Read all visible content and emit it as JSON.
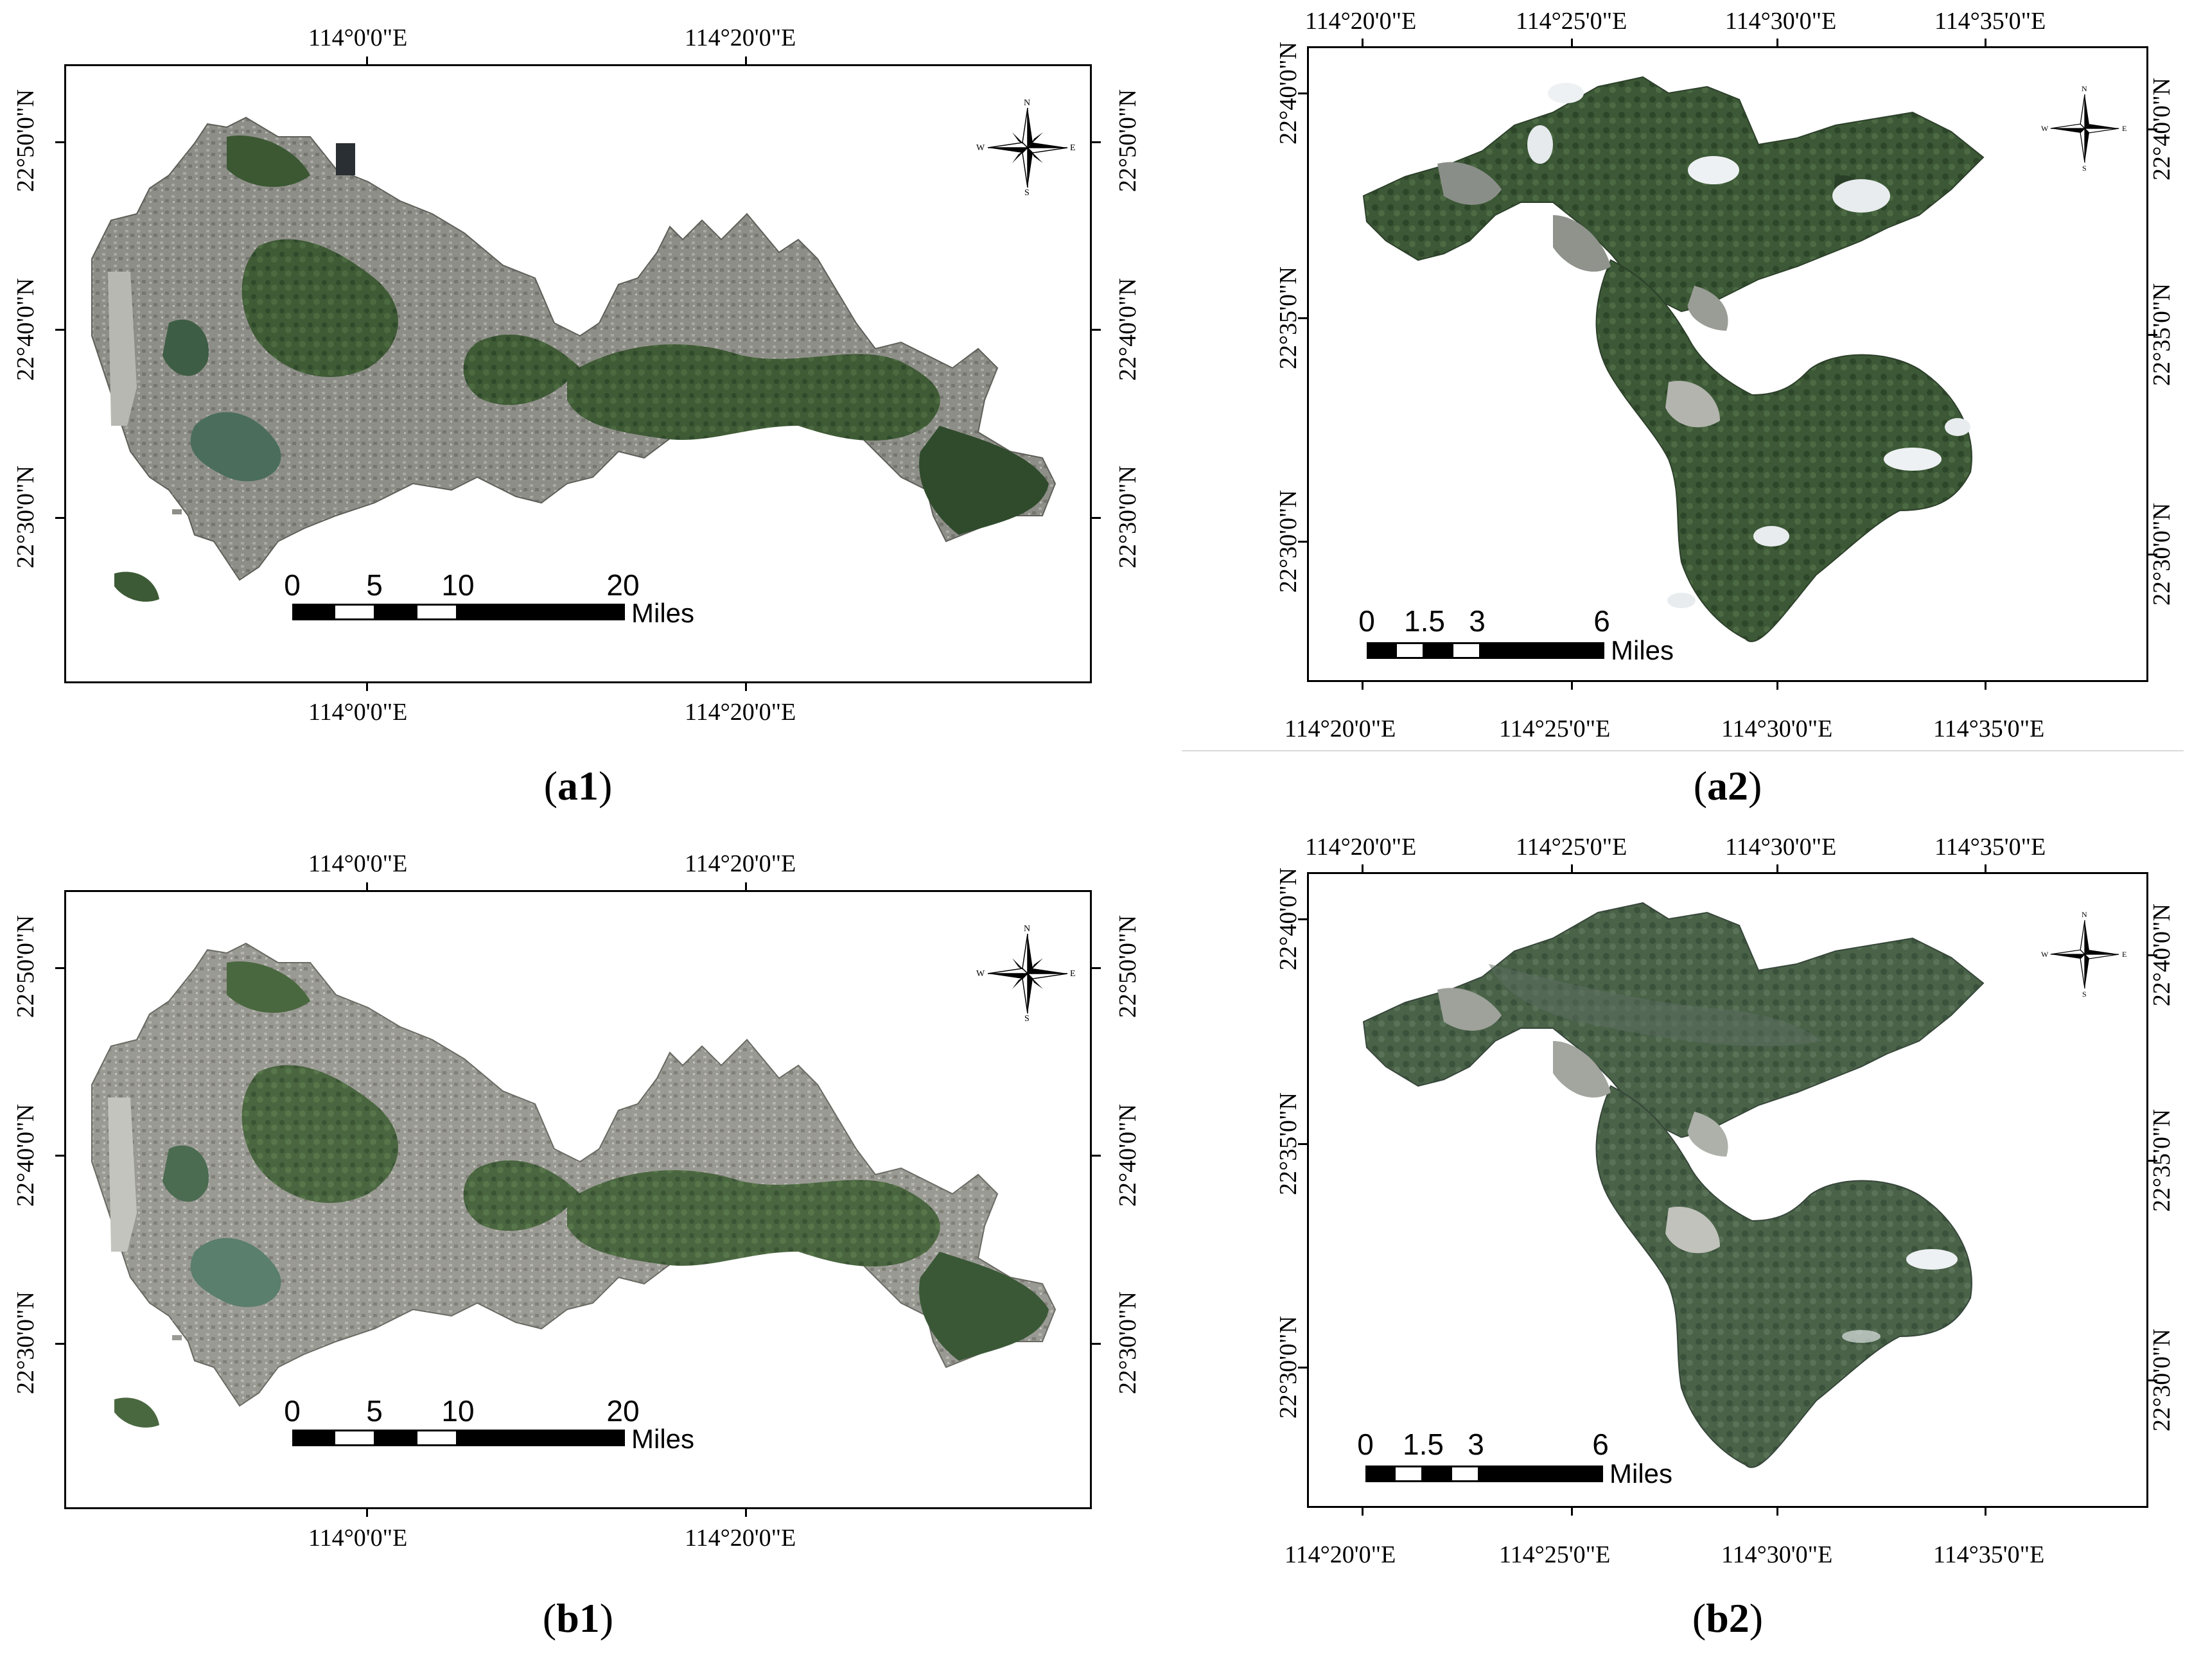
{
  "figure": {
    "panels": [
      {
        "id": "a1",
        "caption_open": "(",
        "caption_label": "a1",
        "caption_close": ")",
        "top_ticks": [
          "114°0'0\"E",
          "114°20'0\"E"
        ],
        "bottom_ticks": [
          "114°0'0\"E",
          "114°20'0\"E"
        ],
        "left_ticks": [
          "22°50'0\"N",
          "22°40'0\"N",
          "22°30'0\"N"
        ],
        "right_ticks": [
          "22°50'0\"N",
          "22°40'0\"N",
          "22°30'0\"N"
        ],
        "scale_labels": [
          "0",
          "5",
          "10",
          "20"
        ],
        "scale_units": "Miles",
        "compass": {
          "n": "N",
          "s": "S",
          "e": "E",
          "w": "W"
        }
      },
      {
        "id": "a2",
        "caption_open": "(",
        "caption_label": "a2",
        "caption_close": ")",
        "top_ticks": [
          "114°20'0\"E",
          "114°25'0\"E",
          "114°30'0\"E",
          "114°35'0\"E"
        ],
        "bottom_ticks": [
          "114°20'0\"E",
          "114°25'0\"E",
          "114°30'0\"E",
          "114°35'0\"E"
        ],
        "left_ticks": [
          "22°40'0\"N",
          "22°35'0\"N",
          "22°30'0\"N"
        ],
        "right_ticks": [
          "22°40'0\"N",
          "22°35'0\"N",
          "22°30'0\"N"
        ],
        "scale_labels": [
          "0",
          "1.5",
          "3",
          "6"
        ],
        "scale_units": "Miles",
        "compass": {
          "n": "N",
          "s": "S",
          "e": "E",
          "w": "W"
        }
      },
      {
        "id": "b1",
        "caption_open": "(",
        "caption_label": "b1",
        "caption_close": ")",
        "top_ticks": [
          "114°0'0\"E",
          "114°20'0\"E"
        ],
        "bottom_ticks": [
          "114°0'0\"E",
          "114°20'0\"E"
        ],
        "left_ticks": [
          "22°50'0\"N",
          "22°40'0\"N",
          "22°30'0\"N"
        ],
        "right_ticks": [
          "22°50'0\"N",
          "22°40'0\"N",
          "22°30'0\"N"
        ],
        "scale_labels": [
          "0",
          "5",
          "10",
          "20"
        ],
        "scale_units": "Miles",
        "compass": {
          "n": "N",
          "s": "S",
          "e": "E",
          "w": "W"
        }
      },
      {
        "id": "b2",
        "caption_open": "(",
        "caption_label": "b2",
        "caption_close": ")",
        "top_ticks": [
          "114°20'0\"E",
          "114°25'0\"E",
          "114°30'0\"E",
          "114°35'0\"E"
        ],
        "bottom_ticks": [
          "114°20'0\"E",
          "114°25'0\"E",
          "114°30'0\"E",
          "114°35'0\"E"
        ],
        "left_ticks": [
          "22°40'0\"N",
          "22°35'0\"N",
          "22°30'0\"N"
        ],
        "right_ticks": [
          "22°40'0\"N",
          "22°35'0\"N",
          "22°30'0\"N"
        ],
        "scale_labels": [
          "0",
          "1.5",
          "3",
          "6"
        ],
        "scale_units": "Miles",
        "compass": {
          "n": "N",
          "s": "S",
          "e": "E",
          "w": "W"
        }
      }
    ],
    "colors": {
      "urban": "#8c8c86",
      "vegetation": "#3e5a35",
      "vegetation_dark": "#2a4227",
      "water": "#4f6d62",
      "cloud": "#e8ecef"
    }
  }
}
